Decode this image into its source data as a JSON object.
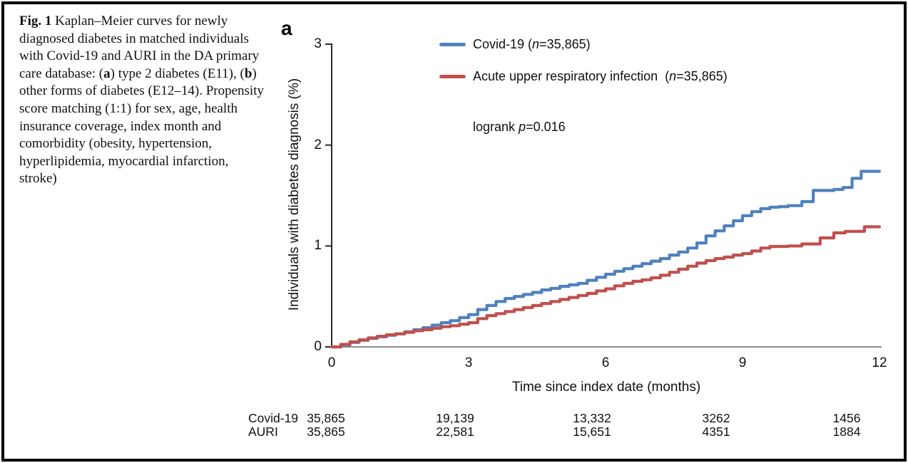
{
  "figure": {
    "caption_parts": [
      {
        "t": "Fig. 1",
        "b": 1
      },
      {
        "t": "  Kaplan–Meier curves for newly diagnosed diabetes in matched individuals with Covid-19 and AURI in the DA primary care database: ("
      },
      {
        "t": "a",
        "b": 1
      },
      {
        "t": ") type 2 diabetes (E11), ("
      },
      {
        "t": "b",
        "b": 1
      },
      {
        "t": ") other forms of diabetes (E12–14). Propensity score matching (1:1) for sex, age, health insurance coverage, index month and comorbidity (obesity, hypertension, hyperlipidemia, myocardial infarction, stroke)"
      }
    ]
  },
  "chart": {
    "panel_label": "a",
    "ylabel": "Individuals with diabetes diagnosis (%)",
    "xlabel": "Time since index date (months)",
    "annotation_parts": [
      {
        "t": "logrank "
      },
      {
        "t": "p",
        "i": 1
      },
      {
        "t": "=0.016"
      }
    ],
    "legend": [
      {
        "label_parts": [
          {
            "t": "Covid-19 ("
          },
          {
            "t": "n",
            "i": 1
          },
          {
            "t": "=35,865)"
          }
        ]
      },
      {
        "label_parts": [
          {
            "t": "Acute upper respiratory infection  ("
          },
          {
            "t": "n",
            "i": 1
          },
          {
            "t": "=35,865)"
          }
        ]
      }
    ]
  },
  "chart_data": {
    "type": "line",
    "subtype": "kaplan-meier-step",
    "title": "",
    "xlabel": "Time since index date (months)",
    "ylabel": "Individuals with diabetes diagnosis (%)",
    "xlim": [
      0,
      12
    ],
    "ylim": [
      0,
      3
    ],
    "xticks": [
      0,
      3,
      6,
      9,
      12
    ],
    "yticks": [
      0,
      1,
      2,
      3
    ],
    "grid": false,
    "legend_position": "top-inside",
    "annotation": "logrank p=0.016",
    "axis_color_x": "#8c8c8c",
    "axis_color_y": "#2b2b2b",
    "series": [
      {
        "name": "Covid-19 (n=35,865)",
        "color": "#4f81bd",
        "points": [
          [
            0,
            0
          ],
          [
            0.2,
            0.02
          ],
          [
            0.4,
            0.045
          ],
          [
            0.6,
            0.065
          ],
          [
            0.8,
            0.085
          ],
          [
            1,
            0.1
          ],
          [
            1.2,
            0.115
          ],
          [
            1.4,
            0.13
          ],
          [
            1.6,
            0.15
          ],
          [
            1.8,
            0.17
          ],
          [
            2,
            0.19
          ],
          [
            2.2,
            0.215
          ],
          [
            2.4,
            0.24
          ],
          [
            2.6,
            0.26
          ],
          [
            2.8,
            0.29
          ],
          [
            3,
            0.32
          ],
          [
            3.2,
            0.37
          ],
          [
            3.4,
            0.41
          ],
          [
            3.6,
            0.45
          ],
          [
            3.8,
            0.48
          ],
          [
            4,
            0.5
          ],
          [
            4.2,
            0.52
          ],
          [
            4.4,
            0.54
          ],
          [
            4.6,
            0.565
          ],
          [
            4.8,
            0.58
          ],
          [
            5,
            0.6
          ],
          [
            5.2,
            0.615
          ],
          [
            5.4,
            0.63
          ],
          [
            5.6,
            0.66
          ],
          [
            5.8,
            0.69
          ],
          [
            6,
            0.72
          ],
          [
            6.2,
            0.75
          ],
          [
            6.4,
            0.775
          ],
          [
            6.6,
            0.8
          ],
          [
            6.8,
            0.825
          ],
          [
            7,
            0.85
          ],
          [
            7.2,
            0.875
          ],
          [
            7.4,
            0.91
          ],
          [
            7.6,
            0.94
          ],
          [
            7.8,
            0.98
          ],
          [
            8,
            1.03
          ],
          [
            8.2,
            1.1
          ],
          [
            8.4,
            1.15
          ],
          [
            8.6,
            1.2
          ],
          [
            8.8,
            1.25
          ],
          [
            9,
            1.3
          ],
          [
            9.2,
            1.34
          ],
          [
            9.4,
            1.37
          ],
          [
            9.6,
            1.385
          ],
          [
            9.8,
            1.39
          ],
          [
            10,
            1.4
          ],
          [
            10.3,
            1.44
          ],
          [
            10.55,
            1.55
          ],
          [
            11,
            1.56
          ],
          [
            11.2,
            1.58
          ],
          [
            11.4,
            1.67
          ],
          [
            11.6,
            1.74
          ],
          [
            12,
            1.74
          ]
        ]
      },
      {
        "name": "Acute upper respiratory infection (n=35,865)",
        "color": "#c0504d",
        "points": [
          [
            0,
            0
          ],
          [
            0.2,
            0.025
          ],
          [
            0.4,
            0.05
          ],
          [
            0.6,
            0.07
          ],
          [
            0.8,
            0.09
          ],
          [
            1,
            0.105
          ],
          [
            1.2,
            0.12
          ],
          [
            1.4,
            0.13
          ],
          [
            1.6,
            0.145
          ],
          [
            1.8,
            0.16
          ],
          [
            2,
            0.17
          ],
          [
            2.2,
            0.185
          ],
          [
            2.4,
            0.2
          ],
          [
            2.6,
            0.21
          ],
          [
            2.8,
            0.225
          ],
          [
            3,
            0.24
          ],
          [
            3.2,
            0.28
          ],
          [
            3.4,
            0.31
          ],
          [
            3.6,
            0.33
          ],
          [
            3.8,
            0.35
          ],
          [
            4,
            0.37
          ],
          [
            4.2,
            0.39
          ],
          [
            4.4,
            0.41
          ],
          [
            4.6,
            0.43
          ],
          [
            4.8,
            0.45
          ],
          [
            5,
            0.47
          ],
          [
            5.2,
            0.49
          ],
          [
            5.4,
            0.51
          ],
          [
            5.6,
            0.53
          ],
          [
            5.8,
            0.555
          ],
          [
            6,
            0.575
          ],
          [
            6.2,
            0.605
          ],
          [
            6.4,
            0.63
          ],
          [
            6.6,
            0.65
          ],
          [
            6.8,
            0.665
          ],
          [
            7,
            0.685
          ],
          [
            7.2,
            0.71
          ],
          [
            7.4,
            0.74
          ],
          [
            7.6,
            0.77
          ],
          [
            7.8,
            0.8
          ],
          [
            8,
            0.83
          ],
          [
            8.2,
            0.855
          ],
          [
            8.4,
            0.875
          ],
          [
            8.6,
            0.89
          ],
          [
            8.8,
            0.91
          ],
          [
            9,
            0.925
          ],
          [
            9.2,
            0.95
          ],
          [
            9.4,
            0.98
          ],
          [
            9.6,
            0.995
          ],
          [
            10,
            1.0
          ],
          [
            10.3,
            1.02
          ],
          [
            10.7,
            1.08
          ],
          [
            11,
            1.13
          ],
          [
            11.25,
            1.145
          ],
          [
            11.67,
            1.19
          ],
          [
            12,
            1.19
          ]
        ]
      }
    ],
    "risk_table": {
      "rows": [
        {
          "label": "Covid-19",
          "values": [
            "35,865",
            "19,139",
            "13,332",
            "3262",
            "1456"
          ]
        },
        {
          "label": "AURI",
          "values": [
            "35,865",
            "22,581",
            "15,651",
            "4351",
            "1884"
          ]
        }
      ]
    }
  }
}
